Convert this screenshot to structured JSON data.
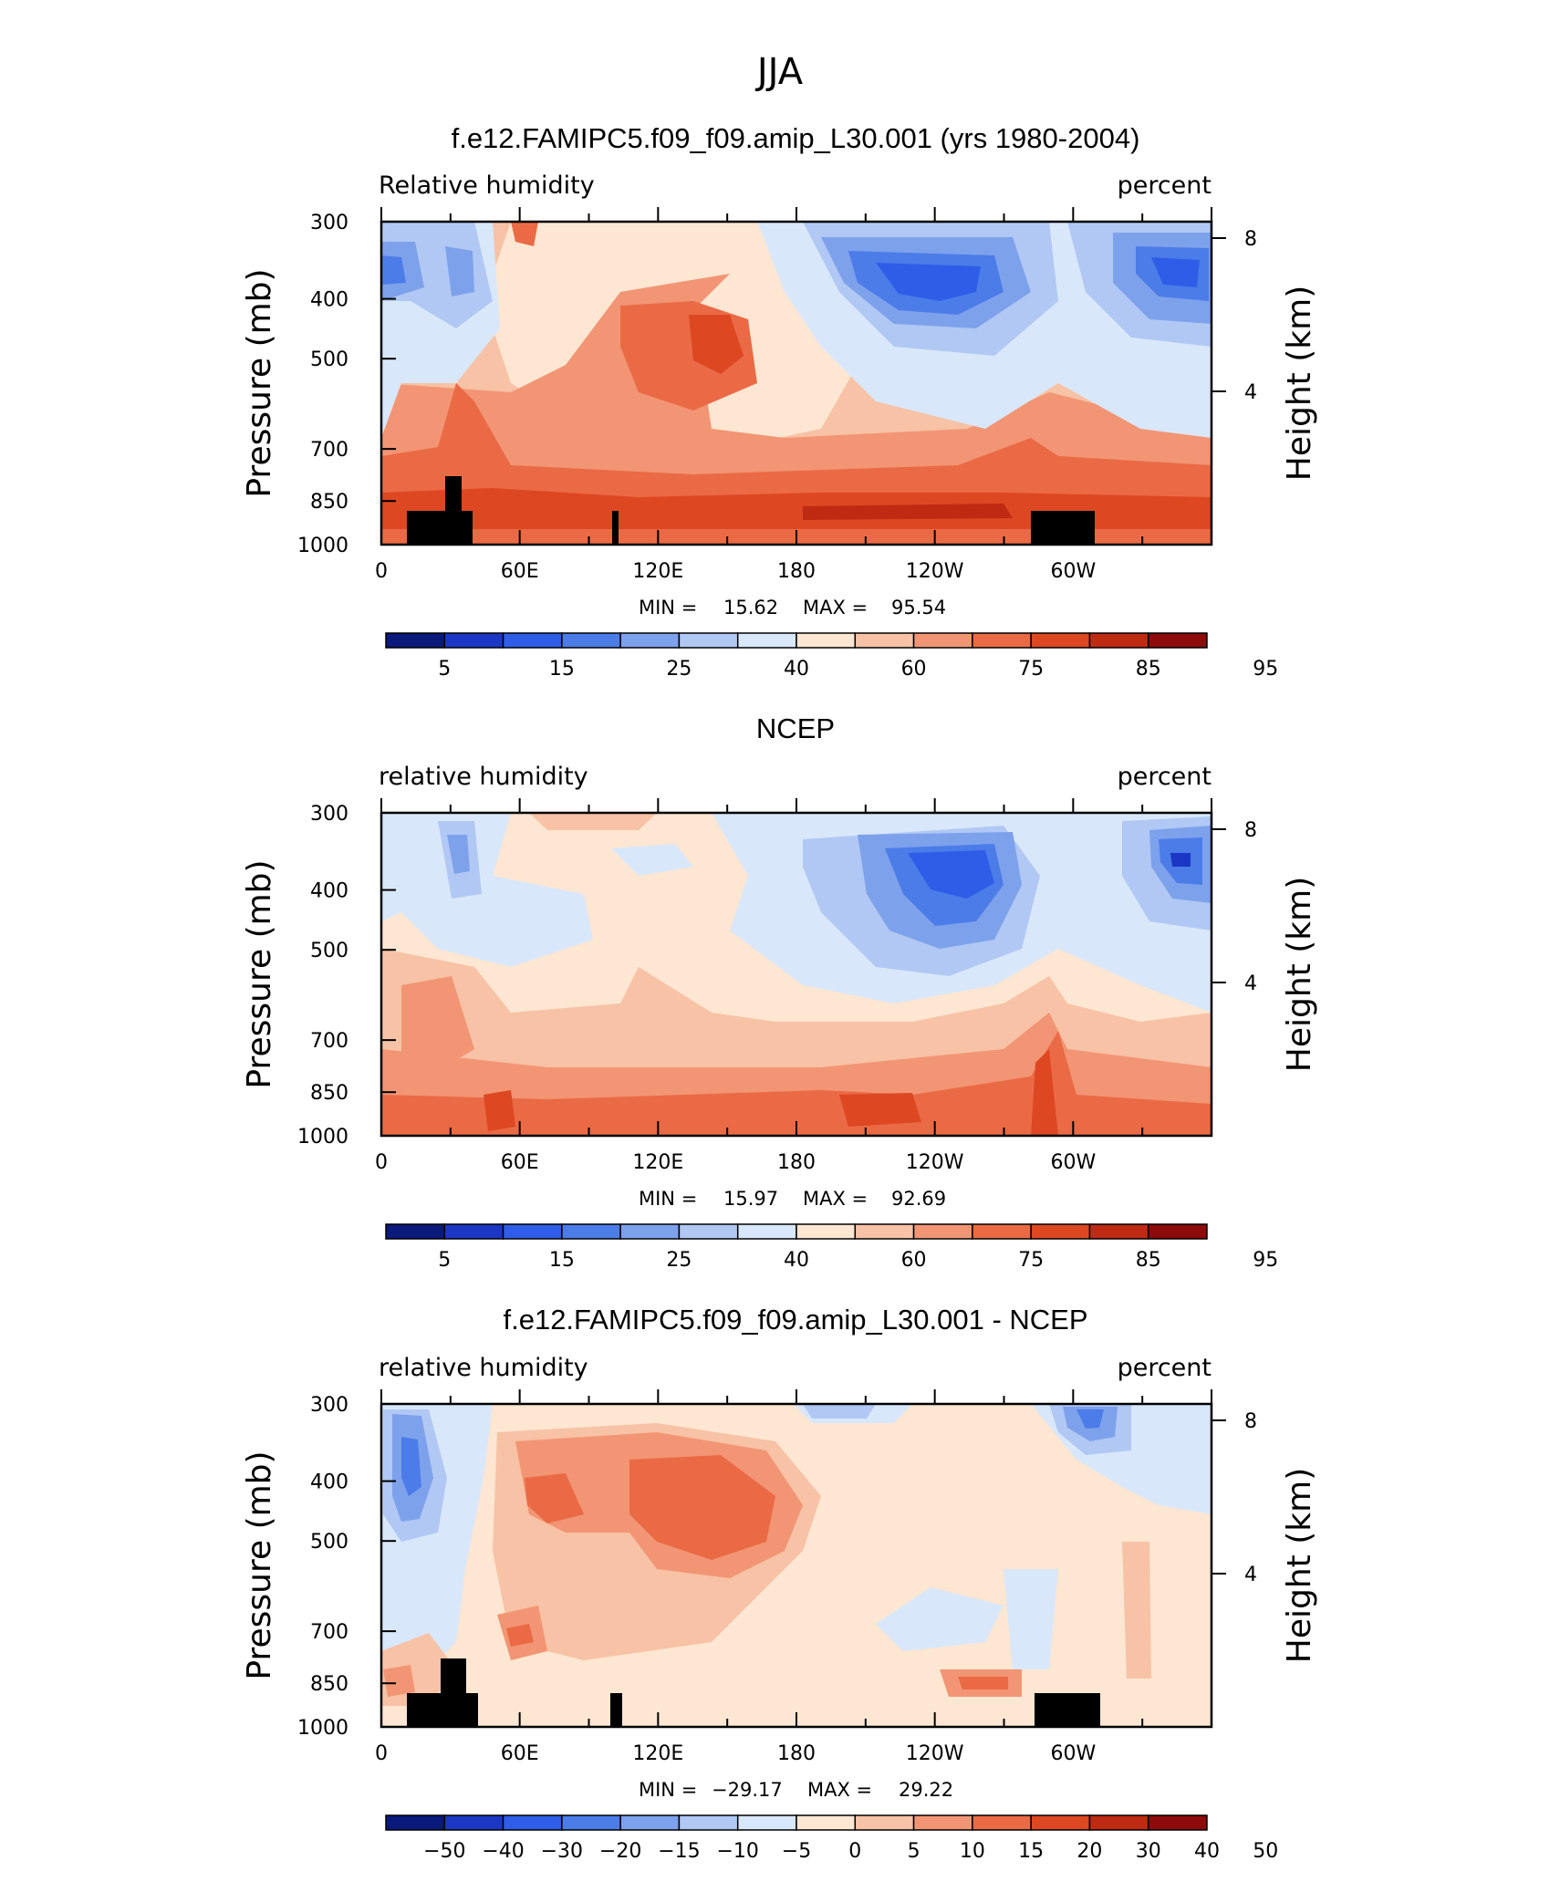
{
  "figure_title": "JJA",
  "colors": {
    "field_palette": [
      "#0a1a7a",
      "#1c37c4",
      "#2f5de8",
      "#4c7ce8",
      "#7ea1ec",
      "#b0c8f3",
      "#d9e7fa",
      "#fde6d2",
      "#f7c2a5",
      "#f29574",
      "#ea6a45",
      "#dd4722",
      "#bf2a12",
      "#8d0b0b"
    ],
    "land": "#000000",
    "frame": "#000000"
  },
  "chart_data": [
    {
      "type": "heatmap",
      "subtype": "filled-contour",
      "title": "f.e12.FAMIPC5.f09_f09.amip_L30.001 (yrs 1980-2004)",
      "left_label": "Relative humidity",
      "right_label": "percent",
      "xlabel": "",
      "ylabel": "Pressure (mb)",
      "ylabel_right": "Height (km)",
      "x_ticks": [
        "0",
        "60E",
        "120E",
        "180",
        "120W",
        "60W"
      ],
      "x_tick_values": [
        0,
        60,
        120,
        180,
        240,
        300
      ],
      "xlim": [
        0,
        360
      ],
      "y_scale": "log",
      "y_ticks": [
        300,
        400,
        500,
        700,
        850,
        1000
      ],
      "ylim": [
        1000,
        300
      ],
      "y_right_ticks": [
        4,
        8
      ],
      "min_label": "MIN =",
      "min_value": "15.62",
      "max_label": "MAX =",
      "max_value": "95.54",
      "colorbar_labels": [
        "5",
        "15",
        "25",
        "40",
        "60",
        "75",
        "85",
        "95"
      ],
      "colorbar_levels": [
        5,
        10,
        15,
        20,
        25,
        30,
        40,
        50,
        60,
        70,
        75,
        80,
        85,
        90,
        95
      ]
    },
    {
      "type": "heatmap",
      "subtype": "filled-contour",
      "title": "NCEP",
      "left_label": "relative humidity",
      "right_label": "percent",
      "xlabel": "",
      "ylabel": "Pressure (mb)",
      "ylabel_right": "Height (km)",
      "x_ticks": [
        "0",
        "60E",
        "120E",
        "180",
        "120W",
        "60W"
      ],
      "x_tick_values": [
        0,
        60,
        120,
        180,
        240,
        300
      ],
      "xlim": [
        0,
        360
      ],
      "y_scale": "log",
      "y_ticks": [
        300,
        400,
        500,
        700,
        850,
        1000
      ],
      "ylim": [
        1000,
        300
      ],
      "y_right_ticks": [
        4,
        8
      ],
      "min_label": "MIN =",
      "min_value": "15.97",
      "max_label": "MAX =",
      "max_value": "92.69",
      "colorbar_labels": [
        "5",
        "15",
        "25",
        "40",
        "60",
        "75",
        "85",
        "95"
      ],
      "colorbar_levels": [
        5,
        10,
        15,
        20,
        25,
        30,
        40,
        50,
        60,
        70,
        75,
        80,
        85,
        90,
        95
      ]
    },
    {
      "type": "heatmap",
      "subtype": "filled-contour",
      "title": "f.e12.FAMIPC5.f09_f09.amip_L30.001 - NCEP",
      "left_label": "relative humidity",
      "right_label": "percent",
      "xlabel": "",
      "ylabel": "Pressure (mb)",
      "ylabel_right": "Height (km)",
      "x_ticks": [
        "0",
        "60E",
        "120E",
        "180",
        "120W",
        "60W"
      ],
      "x_tick_values": [
        0,
        60,
        120,
        180,
        240,
        300
      ],
      "xlim": [
        0,
        360
      ],
      "y_scale": "log",
      "y_ticks": [
        300,
        400,
        500,
        700,
        850,
        1000
      ],
      "ylim": [
        1000,
        300
      ],
      "y_right_ticks": [
        4,
        8
      ],
      "min_label": "MIN =",
      "min_value": "−29.17",
      "max_label": "MAX =",
      "max_value": "29.22",
      "colorbar_labels": [
        "−50",
        "−40",
        "−30",
        "−20",
        "−15",
        "−10",
        "−5",
        "0",
        "5",
        "10",
        "15",
        "20",
        "30",
        "40",
        "50"
      ],
      "colorbar_levels": [
        -50,
        -40,
        -30,
        -20,
        -15,
        -10,
        -5,
        0,
        5,
        10,
        15,
        20,
        30,
        40,
        50
      ]
    }
  ]
}
